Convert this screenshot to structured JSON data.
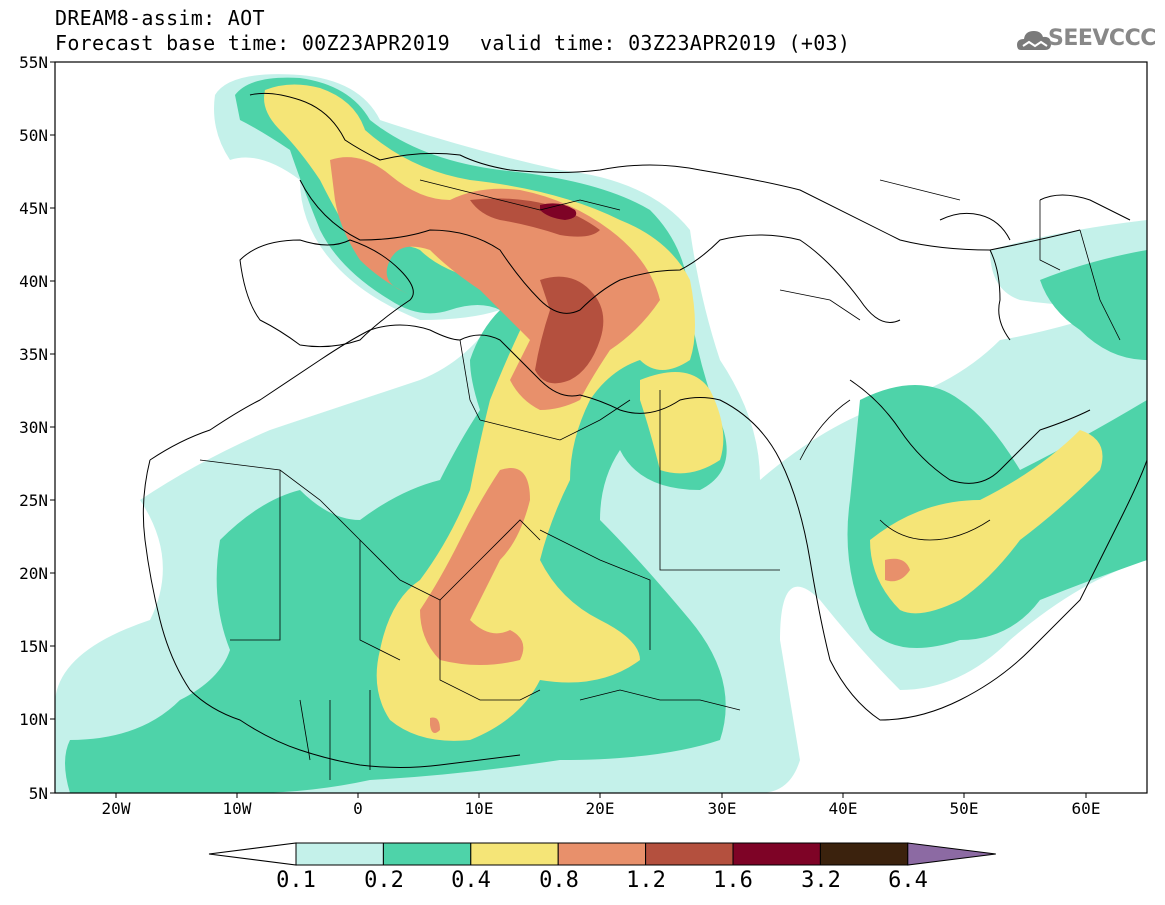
{
  "header": {
    "line1": "DREAM8-assim: AOT",
    "line2": "Forecast base time: 00Z23APR2019",
    "line3": "valid time: 03Z23APR2019 (+03)"
  },
  "logo": {
    "text": "SEEVCCC",
    "icon": "cloud-icon"
  },
  "map": {
    "lat_labels": [
      "55N",
      "50N",
      "45N",
      "40N",
      "35N",
      "30N",
      "25N",
      "20N",
      "15N",
      "10N",
      "5N"
    ],
    "lon_labels": [
      "20W",
      "10W",
      "0",
      "10E",
      "20E",
      "30E",
      "40E",
      "50E",
      "60E"
    ],
    "lat_range": [
      5,
      55
    ],
    "lon_range": [
      -25,
      65
    ]
  },
  "colorbar": {
    "levels": [
      "0.1",
      "0.2",
      "0.4",
      "0.8",
      "1.2",
      "1.6",
      "3.2",
      "6.4"
    ],
    "colors": [
      "#ffffff",
      "#c4f1ea",
      "#4ed3a9",
      "#f5e577",
      "#e8906b",
      "#b4503e",
      "#7e0326",
      "#3b220d",
      "#8c6aa3"
    ]
  }
}
